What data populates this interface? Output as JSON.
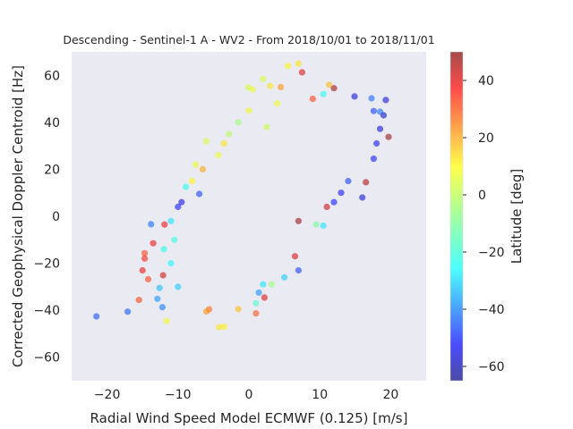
{
  "chart_data": {
    "type": "scatter",
    "title": "Descending - Sentinel-1 A - WV2 - From 2018/10/01 to 2018/11/01",
    "xlabel": "Radial Wind Speed Model ECMWF (0.125) [m/s]",
    "ylabel": "Corrected Geophysical Doppler Centroid [Hz]",
    "xlim": [
      -25,
      25
    ],
    "ylim": [
      -70,
      70
    ],
    "xticks": [
      -20,
      -10,
      0,
      10,
      20
    ],
    "yticks": [
      -60,
      -40,
      -20,
      0,
      20,
      40,
      60
    ],
    "grid": false,
    "background": "#eaeaf2",
    "marker_alpha": 0.55,
    "colorbar": {
      "label": "Latitude [deg]",
      "range": [
        -65,
        50
      ],
      "ticks": [
        -60,
        -40,
        -20,
        0,
        20,
        40
      ],
      "colormap": "jet"
    },
    "series": [
      {
        "points": [
          {
            "x": -21.5,
            "y": -42.6,
            "lat": -43
          },
          {
            "x": -17.1,
            "y": -40.6,
            "lat": -42
          },
          {
            "x": -15.5,
            "y": -35.6,
            "lat": 30
          },
          {
            "x": -15.0,
            "y": -23.0,
            "lat": 38
          },
          {
            "x": -14.7,
            "y": -18.0,
            "lat": 34
          },
          {
            "x": -14.7,
            "y": -15.7,
            "lat": 30
          },
          {
            "x": -14.2,
            "y": -26.8,
            "lat": 30
          },
          {
            "x": -13.5,
            "y": -11.5,
            "lat": 38
          },
          {
            "x": -13.8,
            "y": -3.4,
            "lat": -40
          },
          {
            "x": -12.9,
            "y": -35.1,
            "lat": -35
          },
          {
            "x": -12.2,
            "y": -38.7,
            "lat": -38
          },
          {
            "x": -12.1,
            "y": -25.1,
            "lat": 42
          },
          {
            "x": -11.9,
            "y": -3.5,
            "lat": 38
          },
          {
            "x": -11.6,
            "y": -44.6,
            "lat": 5
          },
          {
            "x": -12.6,
            "y": -30.5,
            "lat": -30
          },
          {
            "x": -12.0,
            "y": -14.0,
            "lat": -20
          },
          {
            "x": -11.0,
            "y": -2.0,
            "lat": -25
          },
          {
            "x": -11.0,
            "y": -20.0,
            "lat": -22
          },
          {
            "x": -10.0,
            "y": 4.0,
            "lat": -50
          },
          {
            "x": -10.5,
            "y": -10.0,
            "lat": -18
          },
          {
            "x": -10.0,
            "y": -30.0,
            "lat": -28
          },
          {
            "x": -9.5,
            "y": 6.0,
            "lat": -55
          },
          {
            "x": -8.9,
            "y": 12.5,
            "lat": -20
          },
          {
            "x": -8.0,
            "y": 15.0,
            "lat": 8
          },
          {
            "x": -7.0,
            "y": 9.5,
            "lat": -45
          },
          {
            "x": -7.5,
            "y": 22.0,
            "lat": 5
          },
          {
            "x": -6.5,
            "y": 20.0,
            "lat": 18
          },
          {
            "x": -6.0,
            "y": 32.0,
            "lat": 2
          },
          {
            "x": -4.3,
            "y": 26.0,
            "lat": 5
          },
          {
            "x": -3.5,
            "y": 31.0,
            "lat": 10
          },
          {
            "x": -2.8,
            "y": 35.0,
            "lat": -2
          },
          {
            "x": -3.5,
            "y": -47.0,
            "lat": 8
          },
          {
            "x": -4.2,
            "y": -47.2,
            "lat": 10
          },
          {
            "x": -5.6,
            "y": -39.6,
            "lat": 25
          },
          {
            "x": -6.0,
            "y": -40.5,
            "lat": 20
          },
          {
            "x": -1.5,
            "y": -39.5,
            "lat": 15
          },
          {
            "x": 1.0,
            "y": -41.3,
            "lat": 28
          },
          {
            "x": 1.0,
            "y": -37.0,
            "lat": -15
          },
          {
            "x": 1.4,
            "y": -32.5,
            "lat": -35
          },
          {
            "x": 2.2,
            "y": -34.6,
            "lat": 40
          },
          {
            "x": 2.0,
            "y": -29.0,
            "lat": -25
          },
          {
            "x": 3.2,
            "y": -29.0,
            "lat": -5
          },
          {
            "x": 5.0,
            "y": -26.0,
            "lat": -28
          },
          {
            "x": 6.5,
            "y": -17.0,
            "lat": 40
          },
          {
            "x": 7.0,
            "y": -23.0,
            "lat": -45
          },
          {
            "x": 7.0,
            "y": -2.0,
            "lat": 48
          },
          {
            "x": 9.5,
            "y": -3.5,
            "lat": -10
          },
          {
            "x": 10.5,
            "y": -4.0,
            "lat": -25
          },
          {
            "x": 11.0,
            "y": 4.0,
            "lat": 42
          },
          {
            "x": 12.0,
            "y": 6.0,
            "lat": -50
          },
          {
            "x": 13.0,
            "y": 10.0,
            "lat": -52
          },
          {
            "x": 14.0,
            "y": 15.0,
            "lat": -45
          },
          {
            "x": 16.0,
            "y": 8.0,
            "lat": -55
          },
          {
            "x": 16.5,
            "y": 14.5,
            "lat": 45
          },
          {
            "x": 17.6,
            "y": 24.5,
            "lat": -50
          },
          {
            "x": 18.0,
            "y": 31.0,
            "lat": -50
          },
          {
            "x": 18.5,
            "y": 37.2,
            "lat": -55
          },
          {
            "x": 19.7,
            "y": 33.8,
            "lat": 48
          },
          {
            "x": 19.0,
            "y": 43.0,
            "lat": -58
          },
          {
            "x": 18.5,
            "y": 44.5,
            "lat": -40
          },
          {
            "x": 17.6,
            "y": 44.8,
            "lat": -45
          },
          {
            "x": 19.3,
            "y": 49.5,
            "lat": -55
          },
          {
            "x": 17.3,
            "y": 50.2,
            "lat": -40
          },
          {
            "x": 14.9,
            "y": 51.0,
            "lat": -55
          },
          {
            "x": 12.0,
            "y": 54.5,
            "lat": 47
          },
          {
            "x": 11.3,
            "y": 56.0,
            "lat": 15
          },
          {
            "x": 10.5,
            "y": 52.0,
            "lat": -20
          },
          {
            "x": 7.5,
            "y": 61.3,
            "lat": 40
          },
          {
            "x": 7.0,
            "y": 65.0,
            "lat": 10
          },
          {
            "x": 5.5,
            "y": 64.0,
            "lat": 8
          },
          {
            "x": 4.5,
            "y": 55.0,
            "lat": 20
          },
          {
            "x": 3.0,
            "y": 55.5,
            "lat": 10
          },
          {
            "x": 2.0,
            "y": 58.5,
            "lat": 2
          },
          {
            "x": 0.5,
            "y": 54.0,
            "lat": 5
          },
          {
            "x": -0.1,
            "y": 54.9,
            "lat": 2
          },
          {
            "x": 4.0,
            "y": 48.0,
            "lat": 5
          },
          {
            "x": 9.0,
            "y": 50.0,
            "lat": 30
          },
          {
            "x": 2.5,
            "y": 38.0,
            "lat": 0
          },
          {
            "x": 0.0,
            "y": 45.0,
            "lat": 5
          },
          {
            "x": -1.5,
            "y": 40.0,
            "lat": -5
          }
        ]
      }
    ]
  }
}
